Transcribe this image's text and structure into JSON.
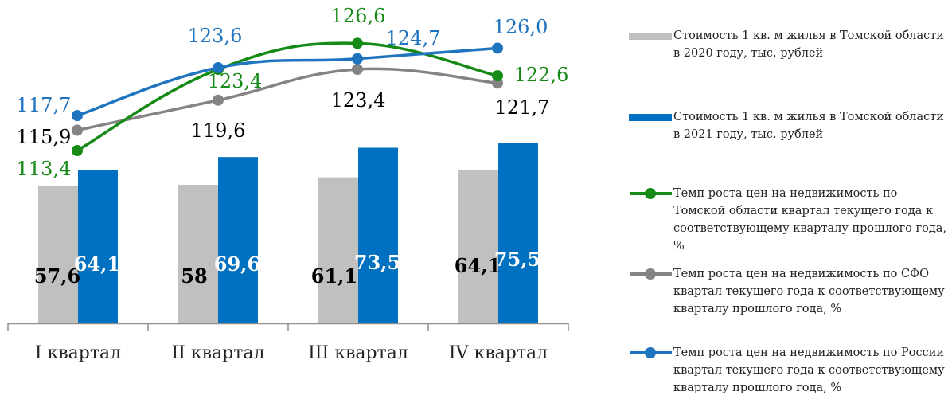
{
  "chart_data": {
    "type": "bar+line",
    "categories": [
      "I квартал",
      "II квартал",
      "III квартал",
      "IV квартал"
    ],
    "bar_series": [
      {
        "name": "Стоимость 1 кв. м жилья в Томской области в 2020 году, тыс. рублей",
        "color": "#c0c0c0",
        "values": [
          57.6,
          58,
          61.1,
          64.1
        ],
        "labels": [
          "57,6",
          "58",
          "61,1",
          "64,1"
        ]
      },
      {
        "name": "Стоимость 1 кв. м жилья в Томской области в 2021 году, тыс. рублей",
        "color": "#0070c0",
        "values": [
          64.1,
          69.6,
          73.5,
          75.5
        ],
        "labels": [
          "64,1",
          "69,6",
          "73,5",
          "75,5"
        ]
      }
    ],
    "line_series": [
      {
        "name": "Темп роста цен на недвижимость по Томской области квартал текущего года к соответствующему кварталу прошлого года, %",
        "color": "#168a16",
        "values": [
          113.4,
          123.4,
          126.6,
          122.6
        ],
        "labels": [
          "113,4",
          "123,4",
          "126,6",
          "122,6"
        ]
      },
      {
        "name": "Темп роста цен на недвижимость по СФО квартал текущего года к соответствующему кварталу прошлого года, %",
        "color": "#848484",
        "values": [
          115.9,
          119.6,
          123.4,
          121.7
        ],
        "labels": [
          "115,9",
          "119,6",
          "123,4",
          "121,7"
        ]
      },
      {
        "name": "Темп роста цен на недвижимость по России квартал текущего года к соответствующему кварталу прошлого года, %",
        "color": "#1f74c0",
        "values": [
          117.7,
          123.6,
          124.7,
          126.0
        ],
        "labels": [
          "117,7",
          "123,6",
          "124,7",
          "126,0"
        ]
      }
    ],
    "legend_position": "right",
    "grid": false
  }
}
